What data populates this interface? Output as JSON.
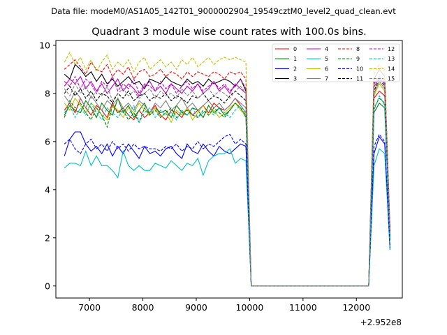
{
  "figure": {
    "suptitle": "Data file: modeM0/AS1A05_142T01_9000002904_19549cztM0_level2_quad_clean.evt"
  },
  "chart_data": {
    "type": "line",
    "title": "Quadrant 3 module wise count rates with 100.0s bins.",
    "xlabel": "",
    "ylabel": "",
    "x_offset_label": "+2.952e8",
    "xlim": [
      6370,
      12860
    ],
    "ylim": [
      -0.5,
      10.2
    ],
    "x_ticks": [
      7000,
      8000,
      9000,
      10000,
      11000,
      12000
    ],
    "x_tick_labels": [
      "7000",
      "8000",
      "9000",
      "10000",
      "11000",
      "12000"
    ],
    "y_ticks": [
      0,
      2,
      4,
      6,
      8,
      10
    ],
    "y_tick_labels": [
      "0",
      "2",
      "4",
      "6",
      "8",
      "10"
    ],
    "grid": false,
    "legend": {
      "location": "upper-right",
      "columns": 4
    },
    "x": [
      6530,
      6630,
      6730,
      6830,
      6930,
      7030,
      7130,
      7230,
      7330,
      7430,
      7530,
      7630,
      7730,
      7830,
      7930,
      8030,
      8130,
      8230,
      8330,
      8430,
      8530,
      8630,
      8730,
      8830,
      8930,
      9030,
      9130,
      9230,
      9330,
      9430,
      9530,
      9630,
      9730,
      9830,
      9930,
      10030,
      10130,
      10230,
      10330,
      10430,
      10530,
      10630,
      10730,
      10830,
      10930,
      11030,
      11130,
      11230,
      11330,
      11430,
      11530,
      11630,
      11730,
      11830,
      11930,
      12030,
      12130,
      12230,
      12330,
      12430,
      12530,
      12630
    ],
    "series": [
      {
        "name": "0",
        "color": "#ff0000",
        "dash": "solid",
        "plateau": [
          7.3,
          7.6,
          7.2,
          7.8,
          7.4,
          7.1,
          7.5,
          7.3,
          7.0,
          7.6,
          7.2,
          7.4,
          7.1,
          6.9,
          7.3,
          7.0,
          7.2,
          7.5,
          7.1,
          6.9,
          7.3,
          7.2,
          7.0,
          7.4,
          7.1,
          7.3,
          7.5,
          7.2,
          7.6,
          7.4,
          7.3,
          7.5,
          7.8,
          7.5,
          7.2
        ],
        "peak": [
          7.8,
          8.1,
          7.9,
          2.0
        ]
      },
      {
        "name": "1",
        "color": "#008000",
        "dash": "solid",
        "plateau": [
          7.1,
          7.5,
          7.3,
          7.2,
          7.7,
          7.4,
          7.0,
          7.6,
          7.3,
          7.1,
          7.8,
          7.2,
          7.5,
          7.0,
          7.3,
          7.6,
          7.1,
          7.4,
          7.2,
          7.3,
          7.0,
          7.5,
          7.2,
          7.1,
          7.4,
          7.3,
          7.0,
          7.5,
          7.2,
          7.4,
          7.1,
          7.3,
          7.6,
          7.4,
          7.0
        ],
        "peak": [
          7.2,
          7.6,
          7.4,
          1.9
        ]
      },
      {
        "name": "2",
        "color": "#0000ff",
        "dash": "solid",
        "plateau": [
          5.4,
          6.1,
          6.4,
          6.4,
          5.9,
          5.6,
          5.8,
          5.5,
          5.9,
          5.4,
          5.8,
          5.5,
          5.9,
          5.6,
          5.3,
          5.8,
          5.5,
          5.6,
          5.4,
          5.7,
          5.8,
          5.5,
          5.3,
          5.9,
          5.6,
          5.5,
          5.9,
          5.6,
          5.4,
          5.8,
          5.6,
          5.5,
          5.7,
          5.9,
          5.8
        ],
        "peak": [
          5.5,
          6.2,
          5.9,
          1.5
        ]
      },
      {
        "name": "3",
        "color": "#000000",
        "dash": "solid",
        "plateau": [
          8.8,
          8.6,
          9.2,
          9.0,
          8.7,
          8.9,
          8.5,
          8.8,
          8.4,
          8.6,
          8.3,
          8.5,
          8.7,
          8.4,
          8.5,
          8.2,
          8.6,
          8.5,
          8.4,
          8.7,
          8.5,
          8.4,
          8.3,
          8.6,
          8.4,
          8.5,
          8.3,
          8.6,
          8.4,
          8.5,
          8.6,
          8.5,
          8.3,
          8.6,
          8.1
        ],
        "peak": [
          8.6,
          9.0,
          8.7,
          2.3
        ]
      },
      {
        "name": "4",
        "color": "#c000c0",
        "dash": "solid",
        "plateau": [
          8.3,
          8.6,
          8.4,
          8.7,
          8.2,
          8.5,
          8.1,
          8.4,
          8.0,
          8.3,
          8.6,
          8.1,
          8.4,
          8.2,
          7.9,
          8.3,
          8.5,
          8.1,
          8.3,
          8.0,
          8.4,
          8.2,
          8.0,
          8.3,
          8.1,
          8.4,
          8.0,
          8.2,
          8.5,
          8.1,
          8.3,
          8.0,
          8.4,
          8.2,
          8.0
        ],
        "peak": [
          8.3,
          8.6,
          8.4,
          2.2
        ]
      },
      {
        "name": "5",
        "color": "#00c0c0",
        "dash": "solid",
        "plateau": [
          4.9,
          5.1,
          5.1,
          5.0,
          5.6,
          5.0,
          5.4,
          5.0,
          5.0,
          4.8,
          4.5,
          5.6,
          5.0,
          4.8,
          5.0,
          4.8,
          4.8,
          5.1,
          5.0,
          4.9,
          5.2,
          5.0,
          4.8,
          5.1,
          5.0,
          5.3,
          4.6,
          5.2,
          5.4,
          5.5,
          5.5,
          5.7,
          5.1,
          5.3,
          5.2
        ],
        "peak": [
          5.0,
          5.7,
          5.5,
          1.5
        ]
      },
      {
        "name": "6",
        "color": "#c0c000",
        "dash": "solid",
        "plateau": [
          7.6,
          7.3,
          7.8,
          7.5,
          7.2,
          7.6,
          7.4,
          7.1,
          6.9,
          7.5,
          7.3,
          7.0,
          7.4,
          7.2,
          7.6,
          7.3,
          7.1,
          7.4,
          7.0,
          7.2,
          6.8,
          7.3,
          7.1,
          7.4,
          6.9,
          7.2,
          7.5,
          7.1,
          7.3,
          7.0,
          7.2,
          7.4,
          7.6,
          7.3,
          7.1
        ],
        "peak": [
          7.9,
          8.4,
          8.1,
          2.1
        ]
      },
      {
        "name": "7",
        "color": "#808080",
        "dash": "solid",
        "plateau": [
          7.9,
          7.6,
          8.1,
          7.8,
          7.4,
          7.9,
          7.6,
          7.3,
          7.7,
          7.5,
          7.8,
          7.4,
          7.6,
          7.3,
          7.7,
          7.5,
          7.2,
          7.6,
          7.4,
          7.7,
          7.3,
          7.5,
          7.8,
          7.4,
          7.6,
          7.3,
          7.5,
          7.7,
          7.4,
          7.6,
          7.3,
          7.5,
          7.8,
          7.6,
          7.4
        ],
        "peak": [
          8.0,
          8.5,
          8.2,
          2.1
        ]
      },
      {
        "name": "8",
        "color": "#ff0000",
        "dash": "dashed",
        "plateau": [
          9.0,
          9.2,
          9.4,
          9.1,
          8.8,
          9.3,
          9.0,
          8.9,
          9.2,
          8.7,
          9.0,
          8.8,
          9.1,
          8.6,
          8.9,
          9.0,
          8.7,
          8.8,
          9.0,
          8.7,
          8.9,
          8.8,
          8.6,
          8.9,
          8.7,
          8.9,
          8.8,
          8.7,
          8.9,
          8.8,
          8.6,
          8.9,
          8.8,
          8.9,
          8.6
        ],
        "peak": [
          8.8,
          9.2,
          8.9,
          2.4
        ]
      },
      {
        "name": "9",
        "color": "#008000",
        "dash": "dashed",
        "plateau": [
          7.0,
          7.7,
          7.4,
          7.6,
          7.2,
          6.9,
          7.4,
          7.1,
          6.6,
          7.5,
          7.2,
          7.3,
          6.9,
          7.2,
          6.8,
          7.4,
          7.1,
          7.3,
          7.0,
          7.2,
          7.4,
          7.0,
          7.2,
          7.3,
          7.1,
          7.0,
          7.3,
          7.1,
          7.4,
          7.2,
          7.0,
          7.3,
          7.6,
          7.4,
          7.1
        ],
        "peak": [
          7.4,
          7.8,
          7.6,
          2.0
        ]
      },
      {
        "name": "10",
        "color": "#0000ff",
        "dash": "dashed",
        "plateau": [
          5.9,
          6.1,
          5.7,
          5.5,
          5.9,
          6.1,
          5.7,
          5.9,
          5.6,
          6.0,
          5.7,
          5.9,
          5.6,
          5.9,
          5.7,
          5.8,
          5.7,
          5.7,
          5.6,
          5.8,
          5.7,
          5.9,
          5.6,
          5.8,
          5.7,
          6.0,
          5.7,
          5.9,
          5.8,
          6.0,
          6.2,
          6.3,
          5.9,
          6.1,
          5.9
        ],
        "peak": [
          5.8,
          6.3,
          6.0,
          1.6
        ]
      },
      {
        "name": "11",
        "color": "#000000",
        "dash": "dashed",
        "plateau": [
          8.0,
          8.3,
          7.9,
          8.2,
          7.8,
          8.1,
          7.7,
          8.0,
          7.9,
          7.6,
          8.0,
          7.8,
          8.1,
          7.7,
          7.9,
          8.0,
          7.7,
          7.9,
          7.8,
          8.0,
          7.7,
          7.9,
          7.8,
          7.6,
          7.9,
          7.8,
          8.0,
          7.7,
          7.9,
          7.8,
          7.6,
          7.9,
          8.1,
          7.9,
          7.7
        ],
        "peak": [
          8.1,
          8.6,
          8.3,
          2.2
        ]
      },
      {
        "name": "12",
        "color": "#c000c0",
        "dash": "dashed",
        "plateau": [
          8.5,
          8.3,
          8.7,
          8.2,
          8.6,
          8.4,
          8.0,
          8.5,
          8.3,
          8.7,
          8.1,
          8.4,
          8.2,
          8.6,
          8.0,
          8.4,
          8.3,
          8.1,
          8.5,
          8.2,
          8.4,
          8.0,
          8.3,
          8.5,
          8.2,
          8.4,
          8.1,
          8.3,
          8.5,
          8.2,
          8.4,
          8.1,
          8.3,
          8.6,
          8.2
        ],
        "peak": [
          8.4,
          8.7,
          8.5,
          2.2
        ]
      },
      {
        "name": "13",
        "color": "#00c0c0",
        "dash": "dashed",
        "plateau": [
          7.2,
          7.5,
          7.0,
          7.4,
          7.1,
          7.6,
          7.2,
          6.9,
          7.4,
          7.2,
          7.0,
          7.3,
          7.1,
          7.5,
          6.8,
          7.2,
          7.4,
          7.0,
          7.3,
          7.1,
          7.2,
          6.9,
          7.3,
          7.1,
          7.4,
          7.0,
          7.2,
          7.3,
          7.1,
          7.4,
          7.2,
          7.0,
          7.3,
          7.5,
          7.2
        ],
        "peak": [
          7.3,
          7.9,
          7.5,
          1.9
        ]
      },
      {
        "name": "14",
        "color": "#c0c000",
        "dash": "dashed",
        "plateau": [
          9.3,
          9.7,
          9.2,
          9.5,
          9.0,
          9.4,
          8.9,
          9.3,
          9.6,
          9.0,
          9.3,
          9.1,
          9.4,
          8.9,
          9.3,
          9.5,
          9.0,
          9.2,
          9.4,
          9.1,
          9.3,
          9.0,
          9.4,
          9.2,
          9.5,
          9.1,
          9.3,
          9.5,
          9.2,
          9.4,
          9.5,
          9.4,
          9.5,
          9.4,
          9.3
        ],
        "peak": [
          9.0,
          9.2,
          8.9,
          2.4
        ]
      },
      {
        "name": "15",
        "color": "#808080",
        "dash": "dashed",
        "plateau": [
          8.2,
          7.9,
          8.4,
          8.0,
          8.3,
          7.8,
          8.1,
          7.9,
          8.3,
          7.7,
          8.0,
          8.2,
          7.9,
          8.1,
          7.8,
          8.0,
          8.2,
          7.8,
          8.1,
          7.9,
          8.0,
          7.8,
          8.2,
          7.9,
          8.1,
          7.8,
          8.0,
          8.2,
          7.9,
          8.1,
          8.0,
          7.8,
          8.1,
          8.3,
          8.0
        ],
        "peak": [
          8.2,
          8.8,
          8.4,
          2.2
        ]
      }
    ],
    "gap_value": 0.0
  }
}
